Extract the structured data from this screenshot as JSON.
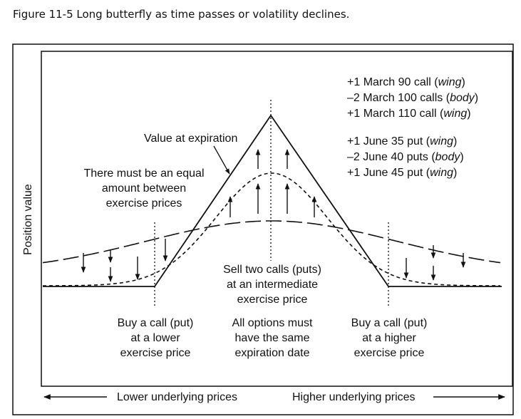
{
  "figure": {
    "caption": "Figure 11-5  Long butterfly as time passes or volatility declines."
  },
  "axes": {
    "y_label": "Position value",
    "x_left": "Lower underlying prices",
    "x_right": "Higher underlying prices"
  },
  "legend": {
    "calls": [
      {
        "prefix": "+1 March 90 call (",
        "role": "wing",
        "suffix": ")"
      },
      {
        "prefix": "–2 March 100 calls (",
        "role": "body",
        "suffix": ")"
      },
      {
        "prefix": "+1 March 110 call (",
        "role": "wing",
        "suffix": ")"
      }
    ],
    "puts": [
      {
        "prefix": "+1 June 35 put (",
        "role": "wing",
        "suffix": ")"
      },
      {
        "prefix": "–2 June 40 puts (",
        "role": "body",
        "suffix": ")"
      },
      {
        "prefix": "+1 June 45 put (",
        "role": "wing",
        "suffix": ")"
      }
    ]
  },
  "annotations": {
    "value_at_expiration": "Value at expiration",
    "equal_amount": [
      "There must be an equal",
      "amount between",
      "exercise prices"
    ],
    "sell_two": [
      "Sell two calls (puts)",
      "at an intermediate",
      "exercise price"
    ],
    "buy_lower": [
      "Buy a call (put)",
      "at a lower",
      "exercise price"
    ],
    "same_expiration": [
      "All options must",
      "have the same",
      "expiration date"
    ],
    "buy_higher": [
      "Buy a call (put)",
      "at a higher",
      "exercise price"
    ]
  }
}
